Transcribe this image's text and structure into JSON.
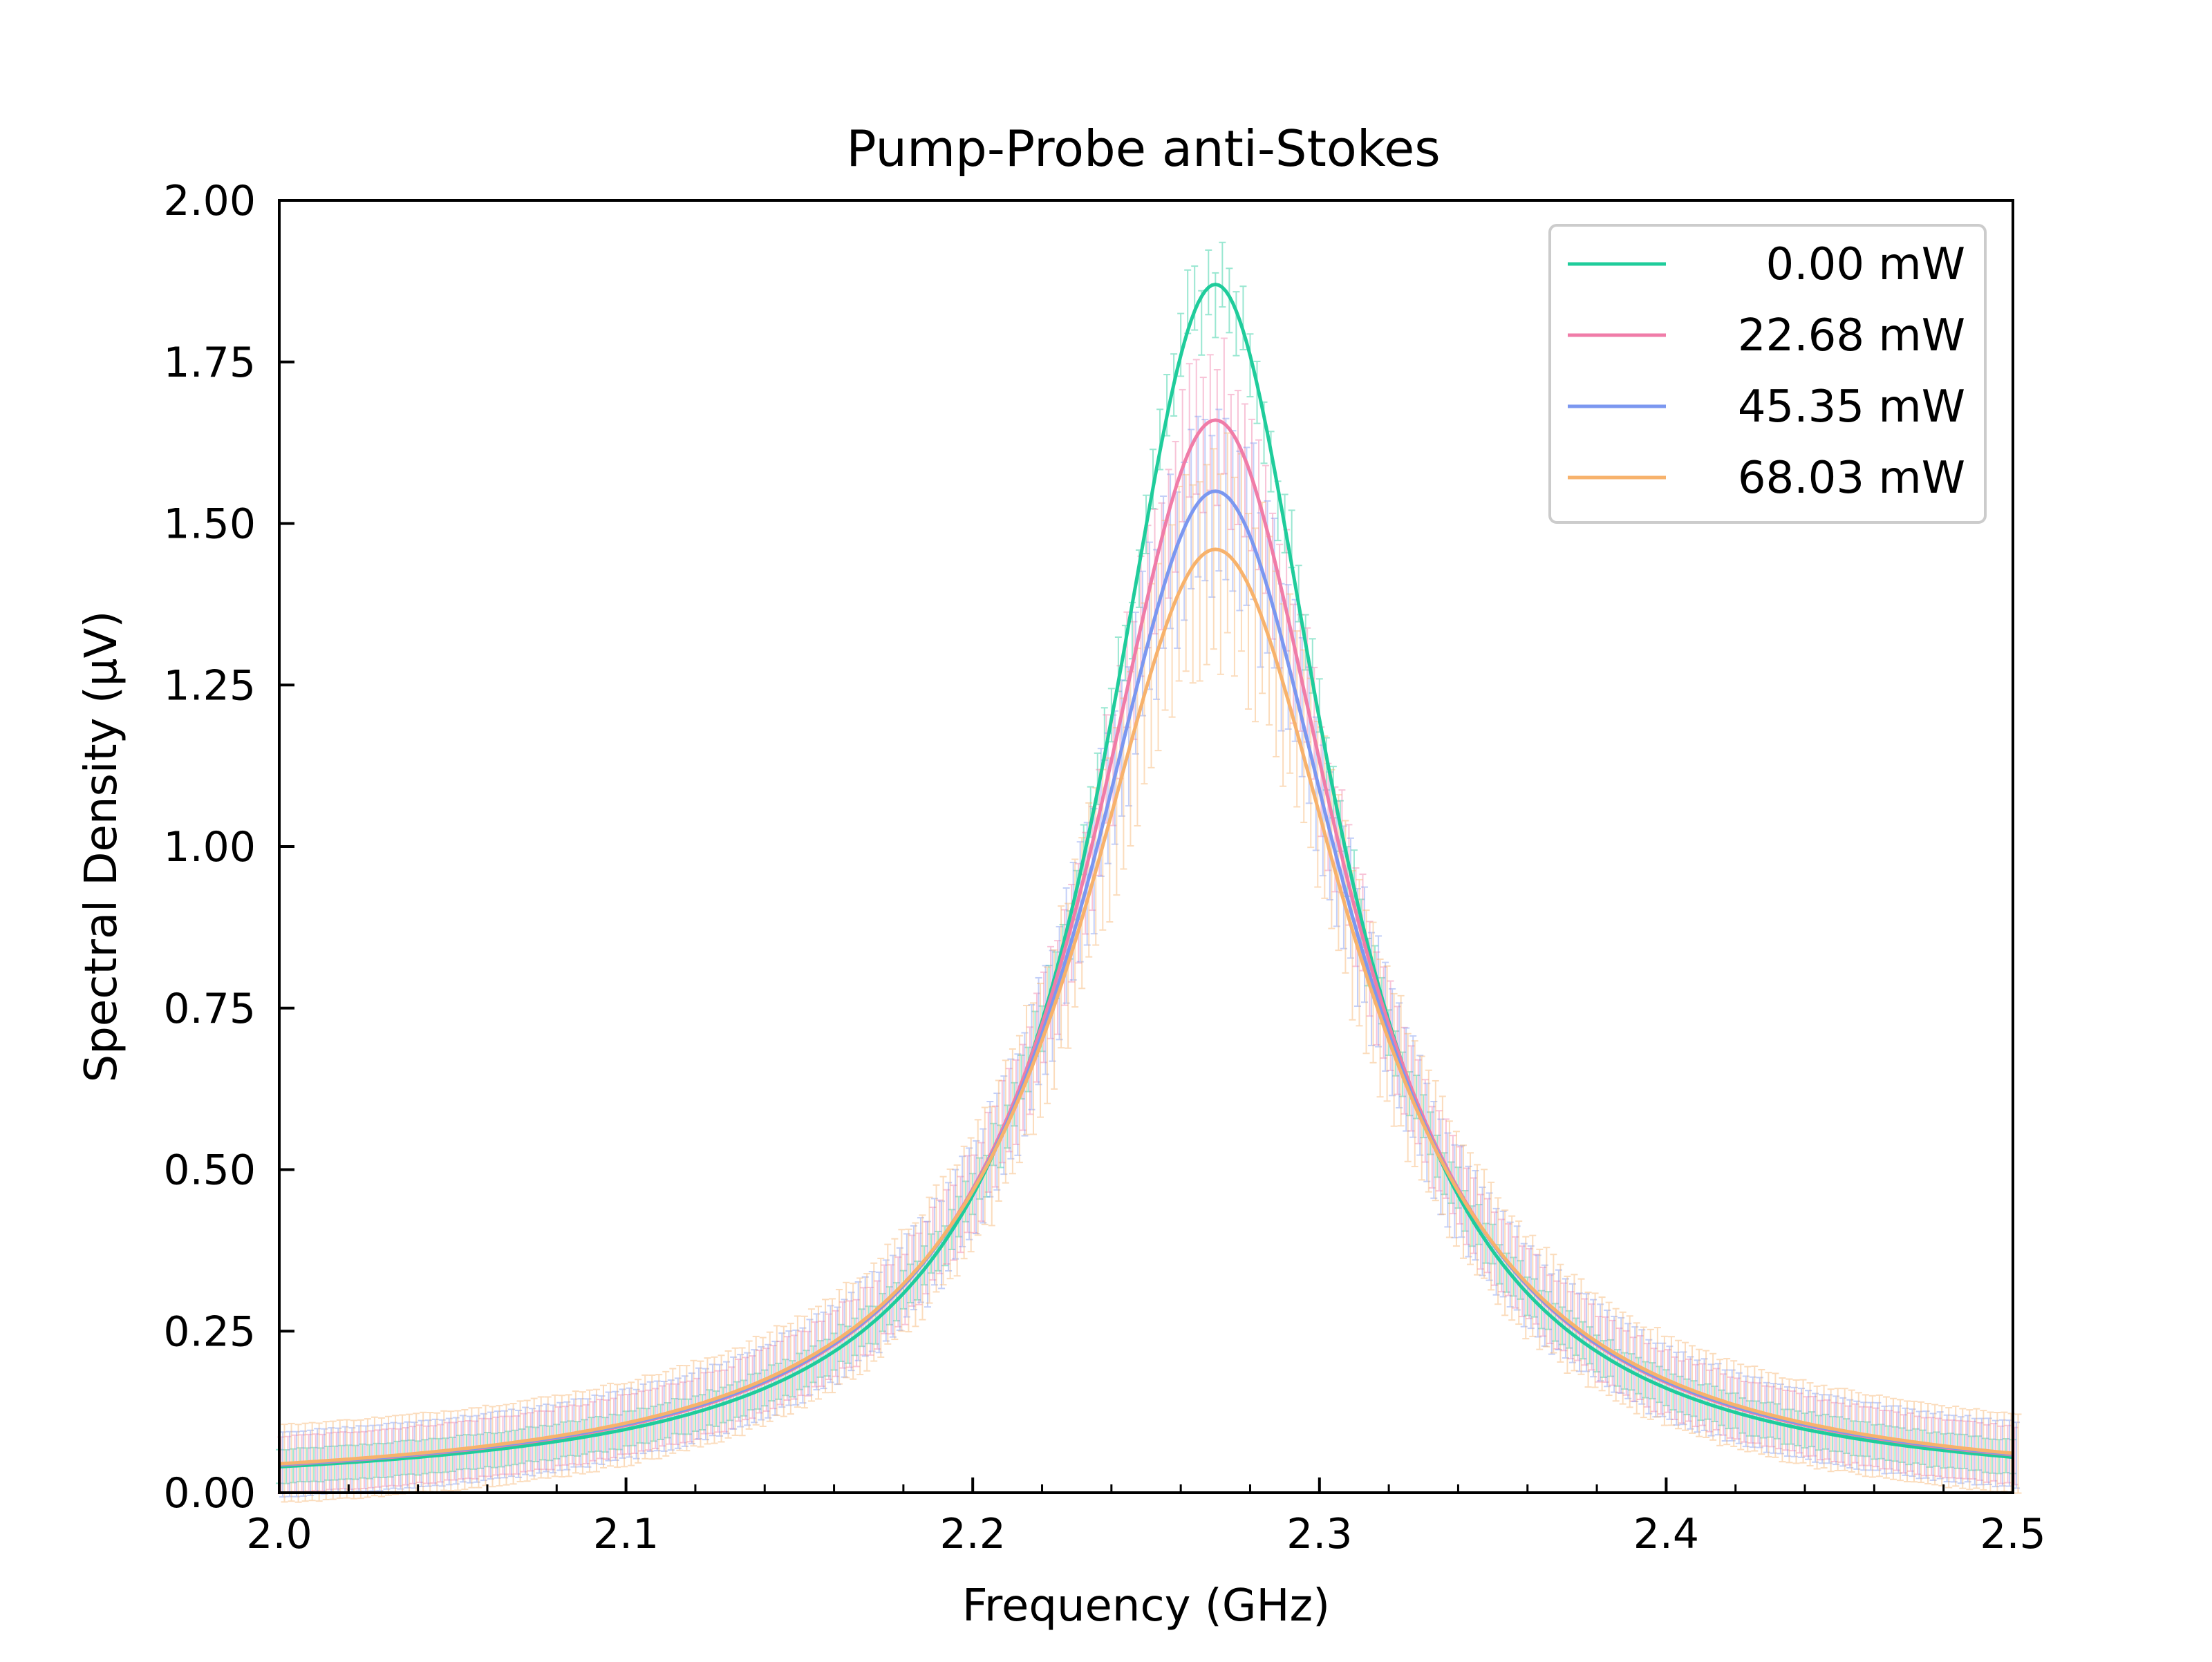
{
  "chart_data": {
    "type": "line",
    "title": "Pump-Probe anti-Stokes",
    "xlabel": "Frequency (GHz)",
    "ylabel": "Spectral Density (μV)",
    "xlim": [
      2.0,
      2.5
    ],
    "ylim": [
      0.0,
      2.0
    ],
    "x_ticks": [
      "2.0",
      "2.1",
      "2.2",
      "2.3",
      "2.4",
      "2.5"
    ],
    "y_ticks": [
      "0.00",
      "0.25",
      "0.50",
      "0.75",
      "1.00",
      "1.25",
      "1.50",
      "1.75",
      "2.00"
    ],
    "grid": false,
    "legend_position": "top-right",
    "series_peak_frequency": 2.27,
    "series": [
      {
        "name": "0.00 mW",
        "color": "#1fcc9b",
        "peak": 1.87,
        "half_width": 0.04,
        "error": 0.035
      },
      {
        "name": "22.68 mW",
        "color": "#f07ca8",
        "peak": 1.66,
        "half_width": 0.044,
        "error": 0.09
      },
      {
        "name": "45.35 mW",
        "color": "#7b97f0",
        "peak": 1.55,
        "half_width": 0.046,
        "error": 0.11
      },
      {
        "name": "68.03 mW",
        "color": "#f7b26c",
        "peak": 1.46,
        "half_width": 0.048,
        "error": 0.14
      }
    ]
  }
}
